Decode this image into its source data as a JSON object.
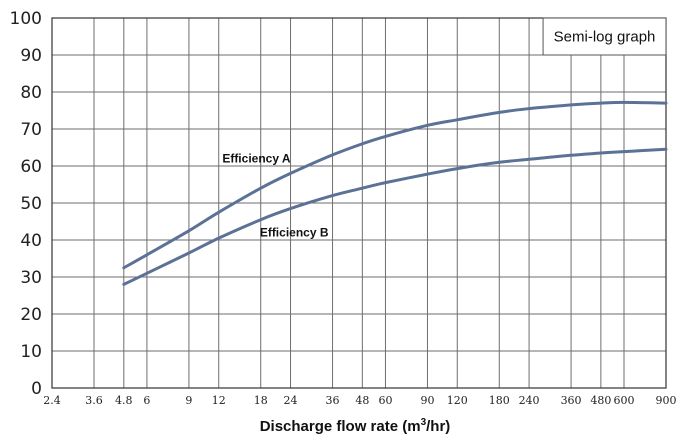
{
  "chart_data": {
    "type": "line",
    "title": "",
    "xlabel": "Discharge flow rate (m",
    "xlabel_sup": "3",
    "xlabel_end": "/hr)",
    "ylabel": "",
    "x_scale": "log",
    "xlim": [
      2.4,
      900
    ],
    "ylim": [
      0,
      100
    ],
    "grid": true,
    "x_tick_values": [
      2.4,
      3.6,
      4.8,
      6,
      9,
      12,
      18,
      24,
      36,
      48,
      60,
      90,
      120,
      180,
      240,
      360,
      480,
      600,
      900
    ],
    "x_tick_labels": [
      "2.4",
      "3.6",
      "4.8",
      "6",
      "9",
      "12",
      "18",
      "24",
      "36",
      "48",
      "60",
      "90",
      "120",
      "180",
      "240",
      "360",
      "480",
      "600",
      "900"
    ],
    "y_tick_values": [
      0,
      10,
      20,
      30,
      40,
      50,
      60,
      70,
      80,
      90,
      100
    ],
    "y_tick_labels": [
      "0",
      "10",
      "20",
      "30",
      "40",
      "50",
      "60",
      "70",
      "80",
      "90",
      "100"
    ],
    "annotation": "Semi-log graph",
    "series_color": "#5b7196",
    "series": [
      {
        "name": "Efficiency A",
        "x": [
          4.8,
          6,
          9,
          12,
          18,
          24,
          36,
          48,
          60,
          90,
          120,
          180,
          240,
          360,
          480,
          600,
          900
        ],
        "values": [
          32.5,
          36,
          42.5,
          47.5,
          54,
          58,
          63,
          66,
          68,
          71,
          72.5,
          74.5,
          75.5,
          76.5,
          77,
          77.2,
          77
        ]
      },
      {
        "name": "Efficiency B",
        "x": [
          4.8,
          6,
          9,
          12,
          18,
          24,
          36,
          48,
          60,
          90,
          120,
          180,
          240,
          360,
          480,
          600,
          900
        ],
        "values": [
          28,
          31,
          36.5,
          40.5,
          45.5,
          48.5,
          52,
          54,
          55.5,
          57.8,
          59.3,
          61,
          61.8,
          62.9,
          63.5,
          63.9,
          64.5
        ]
      }
    ]
  }
}
